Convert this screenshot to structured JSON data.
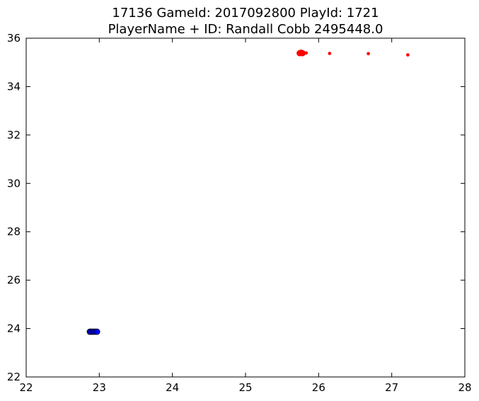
{
  "chart_data": {
    "type": "scatter",
    "title_line1": "17136 GameId: 2017092800 PlayId: 1721",
    "title_line2": "PlayerName + ID: Randall Cobb 2495448.0",
    "xlabel": "",
    "ylabel": "",
    "xlim": [
      22,
      28
    ],
    "ylim": [
      22,
      36
    ],
    "xticks": [
      22,
      23,
      24,
      25,
      26,
      27,
      28
    ],
    "yticks": [
      22,
      24,
      26,
      28,
      30,
      32,
      34,
      36
    ],
    "grid": false,
    "series": [
      {
        "color": "#ff0000",
        "edgecolor": "#ff0000",
        "points": [
          {
            "x": 25.75,
            "y": 35.39,
            "size": "large"
          },
          {
            "x": 25.77,
            "y": 35.39,
            "size": "large"
          },
          {
            "x": 25.74,
            "y": 35.38,
            "size": "large"
          },
          {
            "x": 25.78,
            "y": 35.38,
            "size": "large"
          },
          {
            "x": 25.76,
            "y": 35.4,
            "size": "large"
          },
          {
            "x": 25.83,
            "y": 35.39,
            "size": "small"
          },
          {
            "x": 26.15,
            "y": 35.37,
            "size": "small"
          },
          {
            "x": 26.68,
            "y": 35.36,
            "size": "small"
          },
          {
            "x": 27.22,
            "y": 35.31,
            "size": "small"
          }
        ]
      },
      {
        "color": "#0000ff",
        "edgecolor": "#000000",
        "points": [
          {
            "x": 22.87,
            "y": 23.87,
            "size": "large"
          },
          {
            "x": 22.89,
            "y": 23.87,
            "size": "large"
          },
          {
            "x": 22.91,
            "y": 23.87,
            "size": "large"
          },
          {
            "x": 22.93,
            "y": 23.87,
            "size": "large"
          },
          {
            "x": 22.95,
            "y": 23.87,
            "size": "large"
          },
          {
            "x": 22.97,
            "y": 23.87,
            "size": "large"
          }
        ]
      }
    ]
  }
}
